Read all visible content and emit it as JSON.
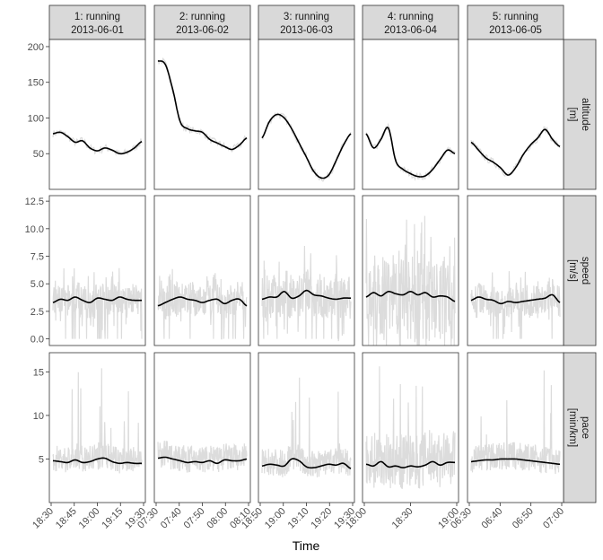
{
  "chart_data": {
    "type": "line",
    "xlabel": "Time",
    "legend": "none",
    "grid": false,
    "sessions": [
      {
        "label": "1: running",
        "date": "2013-06-01",
        "xticks": [
          "18:30",
          "18:45",
          "19:00",
          "19:15",
          "19:30"
        ]
      },
      {
        "label": "2: running",
        "date": "2013-06-02",
        "xticks": [
          "07:30",
          "07:40",
          "07:50",
          "08:00",
          "08:10"
        ]
      },
      {
        "label": "3: running",
        "date": "2013-06-03",
        "xticks": [
          "18:50",
          "19:00",
          "19:10",
          "19:20",
          "19:30"
        ]
      },
      {
        "label": "4: running",
        "date": "2013-06-04",
        "xticks": [
          "18:00",
          "18:30",
          "19:00"
        ]
      },
      {
        "label": "5: running",
        "date": "2013-06-05",
        "xticks": [
          "06:30",
          "06:40",
          "06:50",
          "07:00"
        ]
      }
    ],
    "variables": [
      {
        "label": "altitude\n[m]",
        "yticks": [
          "50",
          "100",
          "150",
          "200"
        ],
        "ylim": [
          0,
          210
        ]
      },
      {
        "label": "speed\n[m/s]",
        "yticks": [
          "0.0",
          "2.5",
          "5.0",
          "7.5",
          "10.0",
          "12.5"
        ],
        "ylim": [
          -0.6,
          13
        ]
      },
      {
        "label": "pace\n[min/km]",
        "yticks": [
          "5",
          "10",
          "15"
        ],
        "ylim": [
          0,
          17.2
        ]
      }
    ],
    "smooth_series": {
      "altitude": [
        [
          78,
          80,
          74,
          66,
          68,
          58,
          54,
          58,
          55,
          50,
          52,
          58,
          67
        ],
        [
          180,
          175,
          140,
          95,
          85,
          82,
          80,
          70,
          65,
          60,
          56,
          62,
          72
        ],
        [
          72,
          95,
          105,
          100,
          85,
          65,
          45,
          25,
          16,
          20,
          40,
          62,
          78
        ],
        [
          78,
          58,
          70,
          86,
          40,
          28,
          22,
          18,
          19,
          28,
          42,
          55,
          50
        ],
        [
          66,
          55,
          44,
          38,
          30,
          20,
          30,
          48,
          62,
          72,
          84,
          70,
          60
        ]
      ],
      "speed": [
        [
          3.3,
          3.6,
          3.5,
          3.8,
          3.5,
          3.3,
          3.7,
          3.6,
          3.5,
          3.8,
          3.6,
          3.5,
          3.5
        ],
        [
          3.0,
          3.3,
          3.6,
          3.8,
          3.6,
          3.5,
          3.3,
          3.5,
          3.6,
          3.2,
          3.5,
          3.6,
          3.0
        ],
        [
          3.6,
          3.8,
          3.8,
          4.3,
          3.7,
          3.9,
          4.4,
          4.0,
          3.9,
          3.7,
          3.6,
          3.7,
          3.7
        ],
        [
          3.8,
          4.2,
          3.9,
          4.3,
          4.1,
          4.0,
          4.3,
          4.0,
          4.2,
          3.8,
          3.9,
          3.8,
          3.4
        ],
        [
          3.5,
          3.8,
          3.6,
          3.5,
          3.2,
          3.4,
          3.3,
          3.4,
          3.5,
          3.6,
          3.7,
          4.0,
          3.3
        ]
      ],
      "pace": [
        [
          4.8,
          4.7,
          4.6,
          4.9,
          4.6,
          4.7,
          5.0,
          5.1,
          4.7,
          4.5,
          4.6,
          4.5,
          4.5
        ],
        [
          5.1,
          5.2,
          5.0,
          4.8,
          4.6,
          4.7,
          4.6,
          4.8,
          4.5,
          4.9,
          4.8,
          4.8,
          5.0
        ],
        [
          4.2,
          4.4,
          4.3,
          4.2,
          5.0,
          4.8,
          4.1,
          4.0,
          4.2,
          4.4,
          4.3,
          4.5,
          3.9
        ],
        [
          4.4,
          4.2,
          4.7,
          4.1,
          4.2,
          4.0,
          4.2,
          4.1,
          4.3,
          4.7,
          4.3,
          4.6,
          4.6
        ],
        [
          4.7,
          4.8,
          4.9,
          4.9,
          5.0,
          5.0,
          5.0,
          4.9,
          4.8,
          4.7,
          4.6,
          4.5,
          4.4
        ]
      ]
    }
  },
  "colors": {
    "strip_fill": "#d9d9d9",
    "panel_border": "#333333",
    "raw_line": "#dcdcdc",
    "smooth_line": "#000000",
    "tick_text": "#4d4d4d"
  }
}
